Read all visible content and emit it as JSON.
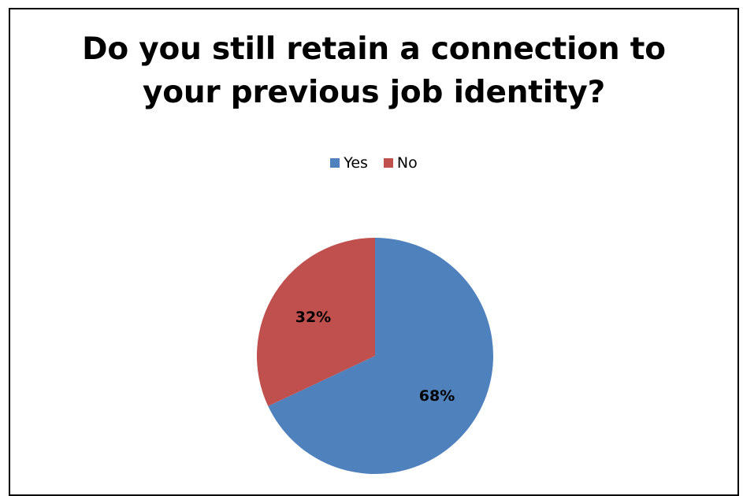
{
  "chart_data": {
    "type": "pie",
    "title": "Do you still retain a connection to your previous job identity?",
    "title_lines": [
      "Do you still retain a connection to",
      "your previous job identity?"
    ],
    "legend_position": "top",
    "categories": [
      "Yes",
      "No"
    ],
    "values": [
      68,
      32
    ],
    "data_labels": [
      "68%",
      "32%"
    ],
    "colors": [
      "#4F81BD",
      "#C0504D"
    ]
  }
}
